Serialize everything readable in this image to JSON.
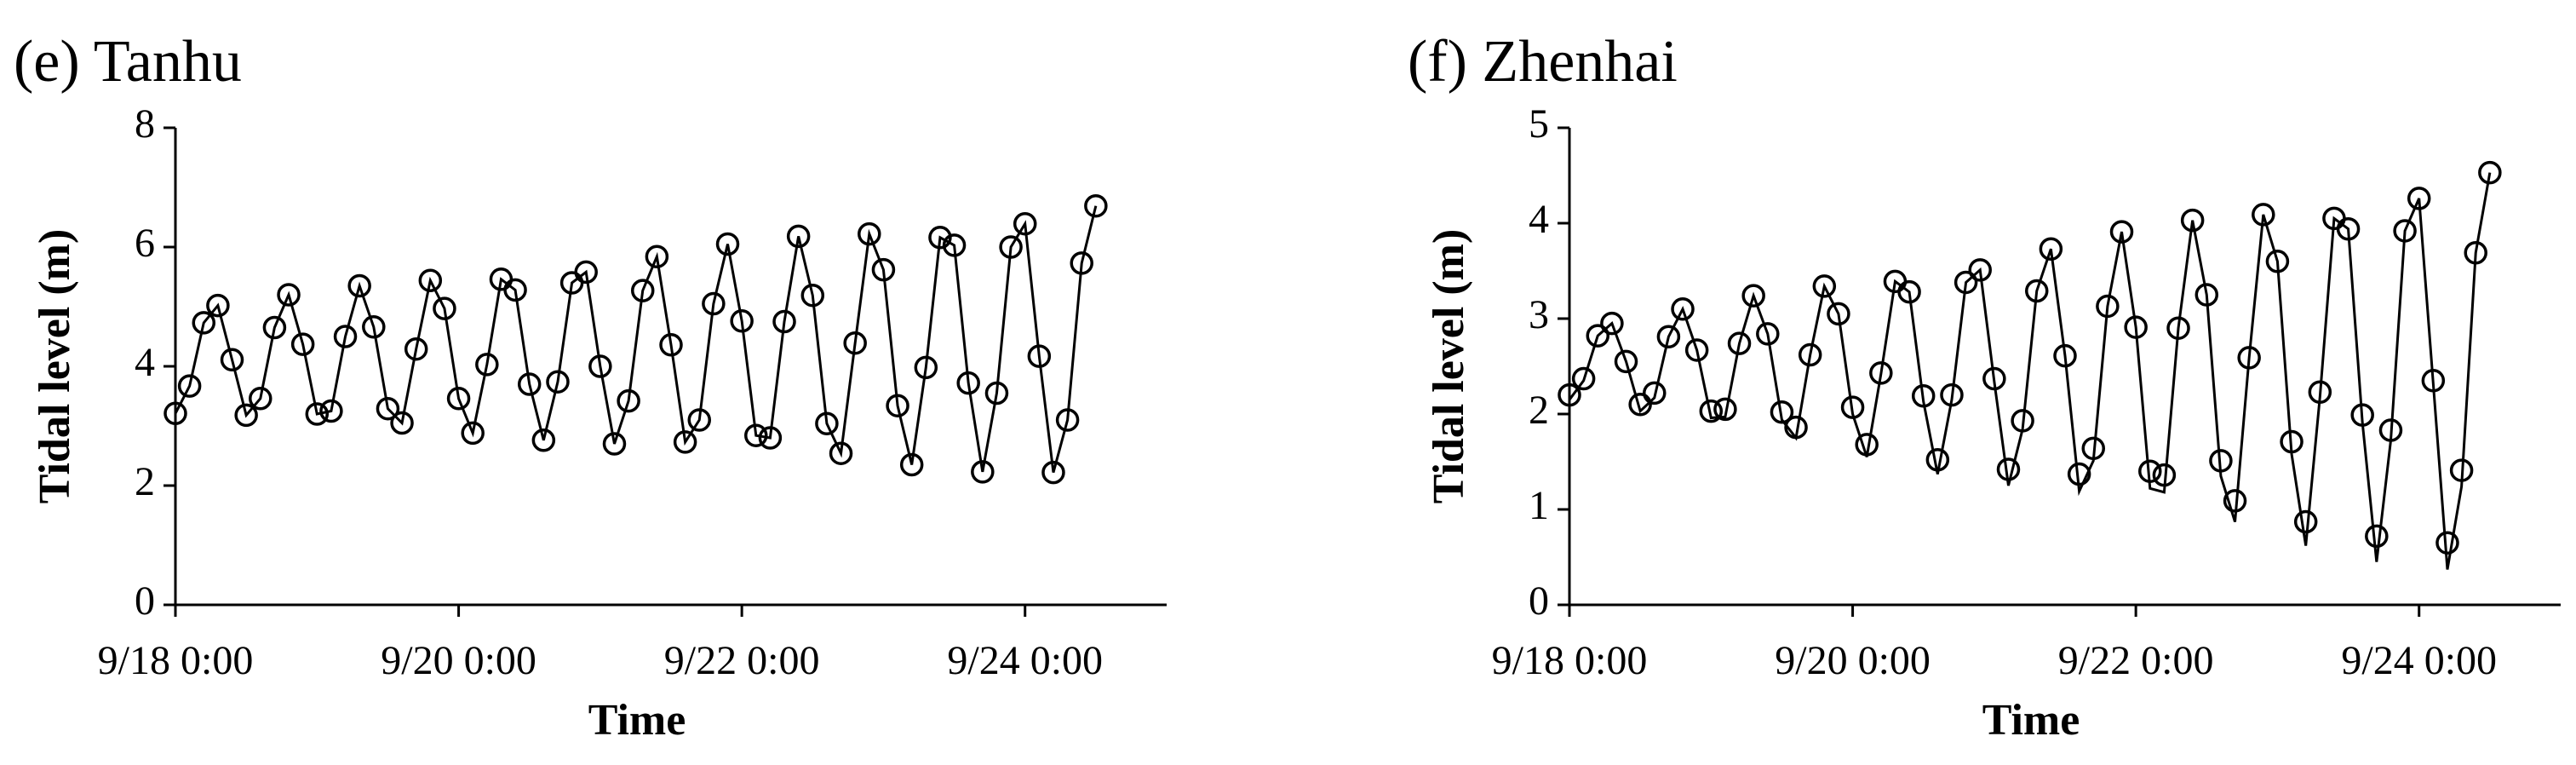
{
  "chart_data": [
    {
      "type": "line",
      "title": "(e) Tanhu",
      "x_label": "Time",
      "y_label": "Tidal level (m)",
      "x": [
        0,
        0.1,
        0.2,
        0.3,
        0.4,
        0.5,
        0.6,
        0.7,
        0.8,
        0.9,
        1,
        1.1,
        1.2,
        1.3,
        1.4,
        1.5,
        1.6,
        1.7,
        1.8,
        1.9,
        2,
        2.1,
        2.2,
        2.3,
        2.4,
        2.5,
        2.6,
        2.7,
        2.8,
        2.9,
        3,
        3.1,
        3.2,
        3.3,
        3.4,
        3.5,
        3.6,
        3.7,
        3.8,
        3.9,
        4,
        4.1,
        4.2,
        4.3,
        4.4,
        4.5,
        4.6,
        4.7,
        4.8,
        4.9,
        5,
        5.1,
        5.2,
        5.3,
        5.4,
        5.5,
        5.6,
        5.7,
        5.8,
        5.9,
        6,
        6.1,
        6.2,
        6.3,
        6.4,
        6.5
      ],
      "series": [
        {
          "mark": "line",
          "color": "#000000",
          "values": [
            3.21,
            3.67,
            4.73,
            5.02,
            4.11,
            3.18,
            3.46,
            4.65,
            5.2,
            4.37,
            3.2,
            3.25,
            4.5,
            5.35,
            4.66,
            3.29,
            3.05,
            4.29,
            5.44,
            4.97,
            3.46,
            2.88,
            4.03,
            5.46,
            5.28,
            3.7,
            2.76,
            3.74,
            5.4,
            5.58,
            4.0,
            2.7,
            3.42,
            5.27,
            5.84,
            4.36,
            2.73,
            3.1,
            5.05,
            6.05,
            4.76,
            2.84,
            2.8,
            4.75,
            6.18,
            5.19,
            3.04,
            2.54,
            4.39,
            6.22,
            5.62,
            3.34,
            2.35,
            3.98,
            6.16,
            6.03,
            3.72,
            2.23,
            3.55,
            6.0,
            6.39,
            4.17,
            2.22,
            3.1,
            5.73,
            6.69
          ]
        },
        {
          "mark": "circle",
          "color": "#000000",
          "values": [
            3.21,
            3.67,
            4.73,
            5.02,
            4.11,
            3.18,
            3.46,
            4.65,
            5.2,
            4.37,
            3.2,
            3.25,
            4.5,
            5.35,
            4.66,
            3.29,
            3.05,
            4.29,
            5.44,
            4.97,
            3.46,
            2.88,
            4.03,
            5.46,
            5.28,
            3.7,
            2.76,
            3.74,
            5.4,
            5.58,
            4.0,
            2.7,
            3.42,
            5.27,
            5.84,
            4.36,
            2.73,
            3.1,
            5.05,
            6.05,
            4.76,
            2.84,
            2.8,
            4.75,
            6.18,
            5.19,
            3.04,
            2.54,
            4.39,
            6.22,
            5.62,
            3.34,
            2.35,
            3.98,
            6.16,
            6.03,
            3.72,
            2.23,
            3.55,
            6.0,
            6.39,
            4.17,
            2.22,
            3.1,
            5.73,
            6.69
          ]
        }
      ],
      "xlim": [
        0,
        7
      ],
      "xticks": [
        {
          "value": 0,
          "label": "9/18 0:00"
        },
        {
          "value": 2,
          "label": "9/20 0:00"
        },
        {
          "value": 4,
          "label": "9/22 0:00"
        },
        {
          "value": 6,
          "label": "9/24 0:00"
        }
      ],
      "ylim": [
        0,
        8
      ],
      "yticks": [
        0,
        2,
        4,
        6,
        8
      ]
    },
    {
      "type": "line",
      "title": "(f) Zhenhai",
      "x_label": "Time",
      "y_label": "Tidal level (m)",
      "x": [
        0,
        0.1,
        0.2,
        0.3,
        0.4,
        0.5,
        0.6,
        0.7,
        0.8,
        0.9,
        1,
        1.1,
        1.2,
        1.3,
        1.4,
        1.5,
        1.6,
        1.7,
        1.8,
        1.9,
        2,
        2.1,
        2.2,
        2.3,
        2.4,
        2.5,
        2.6,
        2.7,
        2.8,
        2.9,
        3,
        3.1,
        3.2,
        3.3,
        3.4,
        3.5,
        3.6,
        3.7,
        3.8,
        3.9,
        4,
        4.1,
        4.2,
        4.3,
        4.4,
        4.5,
        4.6,
        4.7,
        4.8,
        4.9,
        5,
        5.1,
        5.2,
        5.3,
        5.4,
        5.5,
        5.6,
        5.7,
        5.8,
        5.9,
        6,
        6.1,
        6.2,
        6.3,
        6.4,
        6.5
      ],
      "series": [
        {
          "mark": "line",
          "color": "#000000",
          "values": [
            2.15,
            2.35,
            2.82,
            2.95,
            2.55,
            2.03,
            2.17,
            2.81,
            3.1,
            2.67,
            1.96,
            1.97,
            2.74,
            3.24,
            2.84,
            1.94,
            1.75,
            2.62,
            3.34,
            3.05,
            2.0,
            1.55,
            2.42,
            3.39,
            3.28,
            2.13,
            1.37,
            2.15,
            3.38,
            3.51,
            2.34,
            1.25,
            1.84,
            3.29,
            3.73,
            2.61,
            1.19,
            1.51,
            3.13,
            3.91,
            2.91,
            1.22,
            1.18,
            2.9,
            4.03,
            3.25,
            1.35,
            0.87,
            2.59,
            4.09,
            3.6,
            1.58,
            0.62,
            2.18,
            4.05,
            3.94,
            1.91,
            0.45,
            1.72,
            3.92,
            4.26,
            2.32,
            0.37,
            1.24,
            3.69,
            4.53
          ]
        },
        {
          "mark": "circle",
          "color": "#000000",
          "values": [
            2.2,
            2.37,
            2.82,
            2.95,
            2.55,
            2.1,
            2.22,
            2.81,
            3.1,
            2.67,
            2.03,
            2.05,
            2.74,
            3.24,
            2.84,
            2.02,
            1.86,
            2.62,
            3.34,
            3.05,
            2.07,
            1.68,
            2.43,
            3.39,
            3.28,
            2.19,
            1.52,
            2.2,
            3.38,
            3.51,
            2.37,
            1.42,
            1.93,
            3.29,
            3.73,
            2.61,
            1.37,
            1.64,
            3.13,
            3.91,
            2.91,
            1.4,
            1.36,
            2.9,
            4.03,
            3.25,
            1.51,
            1.09,
            2.59,
            4.09,
            3.6,
            1.71,
            0.87,
            2.23,
            4.05,
            3.94,
            1.99,
            0.72,
            1.83,
            3.92,
            4.26,
            2.35,
            0.65,
            1.41,
            3.69,
            4.53
          ]
        }
      ],
      "xlim": [
        0,
        7
      ],
      "xticks": [
        {
          "value": 0,
          "label": "9/18 0:00"
        },
        {
          "value": 2,
          "label": "9/20 0:00"
        },
        {
          "value": 4,
          "label": "9/22 0:00"
        },
        {
          "value": 6,
          "label": "9/24 0:00"
        }
      ],
      "ylim": [
        0,
        5
      ],
      "yticks": [
        0,
        1,
        2,
        3,
        4,
        5
      ]
    }
  ]
}
